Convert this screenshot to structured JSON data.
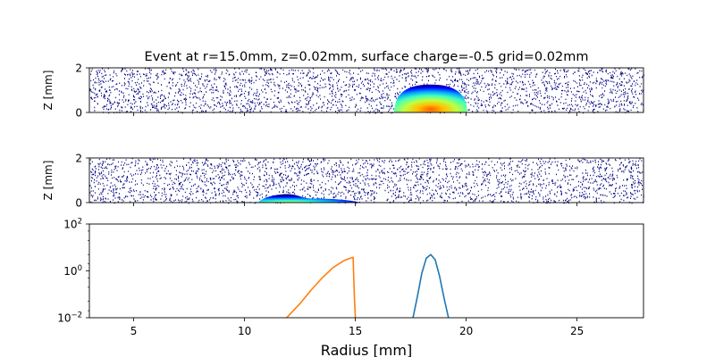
{
  "title": "Event at r=15.0mm, z=0.02mm, surface charge=-0.5 grid=0.02mm",
  "chart_data": [
    {
      "type": "heatmap",
      "name": "top-panel",
      "ylabel": "Z [mm]",
      "xlim": [
        3,
        28
      ],
      "ylim": [
        0,
        2
      ],
      "yticks": [
        "0",
        "2"
      ],
      "blob": {
        "center_r": 18.4,
        "half_width_r": 1.65,
        "peak_z": 1.25
      },
      "colormap": [
        "#000080",
        "#0000ff",
        "#00a0ff",
        "#40ffbf",
        "#c0ff40",
        "#ffc000",
        "#ff6000"
      ]
    },
    {
      "type": "heatmap",
      "name": "middle-panel",
      "ylabel": "Z [mm]",
      "xlim": [
        3,
        28
      ],
      "ylim": [
        0,
        2
      ],
      "yticks": [
        "0",
        "2"
      ],
      "blob": {
        "start_r": 10.6,
        "end_r": 15.2,
        "peak_r": 11.9,
        "peak_z": 0.38
      }
    },
    {
      "type": "line",
      "name": "bottom-panel",
      "xlabel": "Radius [mm]",
      "xlim": [
        3,
        28
      ],
      "yscale": "log",
      "ylim": [
        0.01,
        100
      ],
      "xticks": [
        "5",
        "10",
        "15",
        "20",
        "25"
      ],
      "yticks": [
        {
          "base": "10",
          "exp": "2"
        },
        {
          "base": "10",
          "exp": "0"
        },
        {
          "base": "10",
          "exp": "−2"
        }
      ],
      "series": [
        {
          "color": "#1f77b4",
          "x": [
            17.6,
            17.8,
            18.0,
            18.2,
            18.4,
            18.6,
            18.8,
            19.0,
            19.2
          ],
          "y": [
            0.01,
            0.08,
            0.8,
            3.5,
            5.0,
            3.0,
            0.6,
            0.07,
            0.01
          ]
        },
        {
          "color": "#ff7f0e",
          "x": [
            11.9,
            12.5,
            13.0,
            13.5,
            14.0,
            14.5,
            14.9,
            14.95,
            15.0
          ],
          "y": [
            0.01,
            0.04,
            0.15,
            0.5,
            1.4,
            2.8,
            3.8,
            0.1,
            0.01
          ]
        }
      ]
    }
  ]
}
